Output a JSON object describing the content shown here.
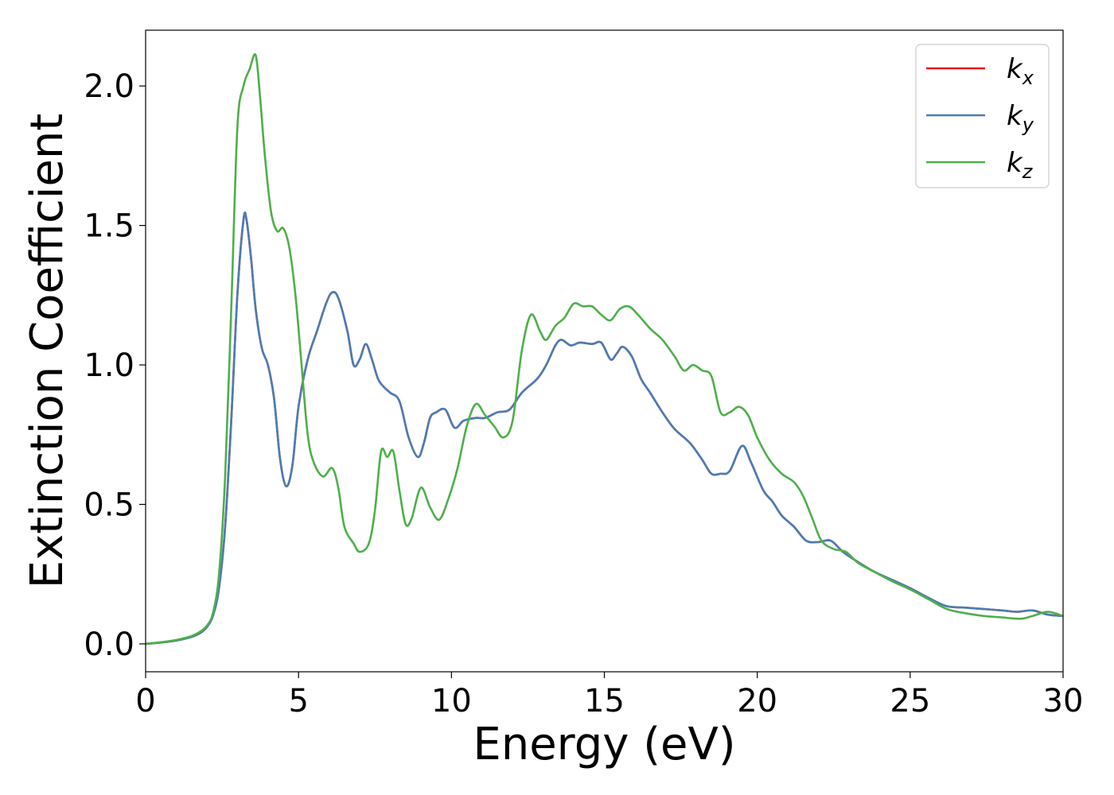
{
  "chart_data": {
    "type": "line",
    "xlabel": "Energy (eV)",
    "ylabel": "Extinction Coefficient",
    "xlim": [
      0,
      30
    ],
    "ylim": [
      -0.1,
      2.2
    ],
    "xticks": [
      0,
      5,
      10,
      15,
      20,
      25,
      30
    ],
    "yticks": [
      0.0,
      0.5,
      1.0,
      1.5,
      2.0
    ],
    "xtick_labels": [
      "0",
      "5",
      "10",
      "15",
      "20",
      "25",
      "30"
    ],
    "ytick_labels": [
      "0.0",
      "0.5",
      "1.0",
      "1.5",
      "2.0"
    ],
    "grid": false,
    "legend_position": "top-right",
    "series": [
      {
        "name": "k_x",
        "legend_base": "k",
        "legend_sub": "x",
        "color": "#e41a1c",
        "points": [
          [
            0,
            0
          ],
          [
            0.5,
            0.005
          ],
          [
            1.0,
            0.012
          ],
          [
            1.5,
            0.025
          ],
          [
            1.8,
            0.04
          ],
          [
            2.0,
            0.06
          ],
          [
            2.2,
            0.1
          ],
          [
            2.4,
            0.2
          ],
          [
            2.6,
            0.42
          ],
          [
            2.8,
            0.8
          ],
          [
            3.0,
            1.25
          ],
          [
            3.2,
            1.52
          ],
          [
            3.3,
            1.52
          ],
          [
            3.45,
            1.38
          ],
          [
            3.6,
            1.2
          ],
          [
            3.8,
            1.06
          ],
          [
            4.0,
            1.0
          ],
          [
            4.2,
            0.88
          ],
          [
            4.4,
            0.66
          ],
          [
            4.6,
            0.565
          ],
          [
            4.8,
            0.64
          ],
          [
            5.0,
            0.85
          ],
          [
            5.3,
            1.02
          ],
          [
            5.6,
            1.12
          ],
          [
            5.9,
            1.22
          ],
          [
            6.1,
            1.26
          ],
          [
            6.3,
            1.24
          ],
          [
            6.6,
            1.12
          ],
          [
            6.8,
            1.0
          ],
          [
            7.0,
            1.02
          ],
          [
            7.2,
            1.075
          ],
          [
            7.4,
            1.02
          ],
          [
            7.6,
            0.95
          ],
          [
            7.8,
            0.92
          ],
          [
            8.0,
            0.9
          ],
          [
            8.3,
            0.87
          ],
          [
            8.6,
            0.74
          ],
          [
            8.9,
            0.67
          ],
          [
            9.1,
            0.72
          ],
          [
            9.3,
            0.81
          ],
          [
            9.5,
            0.83
          ],
          [
            9.8,
            0.84
          ],
          [
            10.1,
            0.775
          ],
          [
            10.4,
            0.8
          ],
          [
            10.8,
            0.81
          ],
          [
            11.1,
            0.81
          ],
          [
            11.5,
            0.83
          ],
          [
            11.9,
            0.84
          ],
          [
            12.3,
            0.9
          ],
          [
            12.8,
            0.95
          ],
          [
            13.1,
            1.0
          ],
          [
            13.4,
            1.07
          ],
          [
            13.6,
            1.09
          ],
          [
            13.9,
            1.07
          ],
          [
            14.2,
            1.08
          ],
          [
            14.6,
            1.075
          ],
          [
            14.9,
            1.08
          ],
          [
            15.2,
            1.02
          ],
          [
            15.4,
            1.04
          ],
          [
            15.6,
            1.065
          ],
          [
            15.9,
            1.03
          ],
          [
            16.2,
            0.95
          ],
          [
            16.5,
            0.9
          ],
          [
            16.9,
            0.83
          ],
          [
            17.3,
            0.77
          ],
          [
            17.8,
            0.72
          ],
          [
            18.2,
            0.66
          ],
          [
            18.5,
            0.61
          ],
          [
            18.8,
            0.61
          ],
          [
            19.1,
            0.62
          ],
          [
            19.5,
            0.71
          ],
          [
            19.8,
            0.65
          ],
          [
            20.2,
            0.55
          ],
          [
            20.5,
            0.51
          ],
          [
            20.8,
            0.46
          ],
          [
            21.2,
            0.42
          ],
          [
            21.6,
            0.37
          ],
          [
            22.0,
            0.365
          ],
          [
            22.4,
            0.37
          ],
          [
            22.8,
            0.33
          ],
          [
            23.2,
            0.3
          ],
          [
            23.8,
            0.26
          ],
          [
            24.4,
            0.23
          ],
          [
            25.0,
            0.2
          ],
          [
            25.6,
            0.165
          ],
          [
            26.2,
            0.135
          ],
          [
            26.8,
            0.13
          ],
          [
            27.4,
            0.125
          ],
          [
            28.0,
            0.12
          ],
          [
            28.5,
            0.115
          ],
          [
            29.0,
            0.12
          ],
          [
            29.5,
            0.105
          ],
          [
            30.0,
            0.1
          ]
        ]
      },
      {
        "name": "k_y",
        "legend_base": "k",
        "legend_sub": "y",
        "color": "#4a7db5",
        "points": [
          [
            0,
            0
          ],
          [
            0.5,
            0.005
          ],
          [
            1.0,
            0.012
          ],
          [
            1.5,
            0.025
          ],
          [
            1.8,
            0.04
          ],
          [
            2.0,
            0.06
          ],
          [
            2.2,
            0.1
          ],
          [
            2.4,
            0.2
          ],
          [
            2.6,
            0.42
          ],
          [
            2.8,
            0.8
          ],
          [
            3.0,
            1.25
          ],
          [
            3.2,
            1.52
          ],
          [
            3.3,
            1.52
          ],
          [
            3.45,
            1.38
          ],
          [
            3.6,
            1.2
          ],
          [
            3.8,
            1.06
          ],
          [
            4.0,
            1.0
          ],
          [
            4.2,
            0.88
          ],
          [
            4.4,
            0.66
          ],
          [
            4.6,
            0.565
          ],
          [
            4.8,
            0.64
          ],
          [
            5.0,
            0.85
          ],
          [
            5.3,
            1.02
          ],
          [
            5.6,
            1.12
          ],
          [
            5.9,
            1.22
          ],
          [
            6.1,
            1.26
          ],
          [
            6.3,
            1.24
          ],
          [
            6.6,
            1.12
          ],
          [
            6.8,
            1.0
          ],
          [
            7.0,
            1.02
          ],
          [
            7.2,
            1.075
          ],
          [
            7.4,
            1.02
          ],
          [
            7.6,
            0.95
          ],
          [
            7.8,
            0.92
          ],
          [
            8.0,
            0.9
          ],
          [
            8.3,
            0.87
          ],
          [
            8.6,
            0.74
          ],
          [
            8.9,
            0.67
          ],
          [
            9.1,
            0.72
          ],
          [
            9.3,
            0.81
          ],
          [
            9.5,
            0.83
          ],
          [
            9.8,
            0.84
          ],
          [
            10.1,
            0.775
          ],
          [
            10.4,
            0.8
          ],
          [
            10.8,
            0.81
          ],
          [
            11.1,
            0.81
          ],
          [
            11.5,
            0.83
          ],
          [
            11.9,
            0.84
          ],
          [
            12.3,
            0.9
          ],
          [
            12.8,
            0.95
          ],
          [
            13.1,
            1.0
          ],
          [
            13.4,
            1.07
          ],
          [
            13.6,
            1.09
          ],
          [
            13.9,
            1.07
          ],
          [
            14.2,
            1.08
          ],
          [
            14.6,
            1.075
          ],
          [
            14.9,
            1.08
          ],
          [
            15.2,
            1.02
          ],
          [
            15.4,
            1.04
          ],
          [
            15.6,
            1.065
          ],
          [
            15.9,
            1.03
          ],
          [
            16.2,
            0.95
          ],
          [
            16.5,
            0.9
          ],
          [
            16.9,
            0.83
          ],
          [
            17.3,
            0.77
          ],
          [
            17.8,
            0.72
          ],
          [
            18.2,
            0.66
          ],
          [
            18.5,
            0.61
          ],
          [
            18.8,
            0.61
          ],
          [
            19.1,
            0.62
          ],
          [
            19.5,
            0.71
          ],
          [
            19.8,
            0.65
          ],
          [
            20.2,
            0.55
          ],
          [
            20.5,
            0.51
          ],
          [
            20.8,
            0.46
          ],
          [
            21.2,
            0.42
          ],
          [
            21.6,
            0.37
          ],
          [
            22.0,
            0.365
          ],
          [
            22.4,
            0.37
          ],
          [
            22.8,
            0.33
          ],
          [
            23.2,
            0.3
          ],
          [
            23.8,
            0.26
          ],
          [
            24.4,
            0.23
          ],
          [
            25.0,
            0.2
          ],
          [
            25.6,
            0.165
          ],
          [
            26.2,
            0.135
          ],
          [
            26.8,
            0.13
          ],
          [
            27.4,
            0.125
          ],
          [
            28.0,
            0.12
          ],
          [
            28.5,
            0.115
          ],
          [
            29.0,
            0.12
          ],
          [
            29.5,
            0.105
          ],
          [
            30.0,
            0.1
          ]
        ]
      },
      {
        "name": "k_z",
        "legend_base": "k",
        "legend_sub": "z",
        "color": "#4daf4a",
        "points": [
          [
            0,
            0
          ],
          [
            0.5,
            0.006
          ],
          [
            1.0,
            0.014
          ],
          [
            1.5,
            0.028
          ],
          [
            1.8,
            0.045
          ],
          [
            2.0,
            0.065
          ],
          [
            2.2,
            0.11
          ],
          [
            2.4,
            0.25
          ],
          [
            2.6,
            0.6
          ],
          [
            2.8,
            1.2
          ],
          [
            3.0,
            1.85
          ],
          [
            3.2,
            2.0
          ],
          [
            3.4,
            2.06
          ],
          [
            3.6,
            2.11
          ],
          [
            3.75,
            1.95
          ],
          [
            3.9,
            1.75
          ],
          [
            4.1,
            1.55
          ],
          [
            4.3,
            1.48
          ],
          [
            4.5,
            1.49
          ],
          [
            4.7,
            1.42
          ],
          [
            4.9,
            1.25
          ],
          [
            5.1,
            1.0
          ],
          [
            5.3,
            0.75
          ],
          [
            5.5,
            0.65
          ],
          [
            5.8,
            0.6
          ],
          [
            6.1,
            0.63
          ],
          [
            6.3,
            0.56
          ],
          [
            6.5,
            0.42
          ],
          [
            6.8,
            0.36
          ],
          [
            7.0,
            0.33
          ],
          [
            7.3,
            0.36
          ],
          [
            7.5,
            0.48
          ],
          [
            7.7,
            0.69
          ],
          [
            7.9,
            0.67
          ],
          [
            8.1,
            0.69
          ],
          [
            8.3,
            0.55
          ],
          [
            8.5,
            0.43
          ],
          [
            8.7,
            0.45
          ],
          [
            9.0,
            0.56
          ],
          [
            9.3,
            0.49
          ],
          [
            9.6,
            0.445
          ],
          [
            9.9,
            0.52
          ],
          [
            10.2,
            0.63
          ],
          [
            10.5,
            0.78
          ],
          [
            10.8,
            0.86
          ],
          [
            11.1,
            0.82
          ],
          [
            11.4,
            0.78
          ],
          [
            11.7,
            0.74
          ],
          [
            12.0,
            0.8
          ],
          [
            12.3,
            1.05
          ],
          [
            12.6,
            1.18
          ],
          [
            12.9,
            1.12
          ],
          [
            13.1,
            1.09
          ],
          [
            13.4,
            1.14
          ],
          [
            13.7,
            1.17
          ],
          [
            14.0,
            1.22
          ],
          [
            14.3,
            1.21
          ],
          [
            14.6,
            1.21
          ],
          [
            14.9,
            1.18
          ],
          [
            15.2,
            1.16
          ],
          [
            15.5,
            1.2
          ],
          [
            15.8,
            1.21
          ],
          [
            16.1,
            1.18
          ],
          [
            16.5,
            1.13
          ],
          [
            16.9,
            1.09
          ],
          [
            17.3,
            1.03
          ],
          [
            17.6,
            0.98
          ],
          [
            17.9,
            1.0
          ],
          [
            18.2,
            0.98
          ],
          [
            18.5,
            0.96
          ],
          [
            18.8,
            0.83
          ],
          [
            19.1,
            0.83
          ],
          [
            19.4,
            0.85
          ],
          [
            19.7,
            0.82
          ],
          [
            20.0,
            0.74
          ],
          [
            20.4,
            0.66
          ],
          [
            20.8,
            0.61
          ],
          [
            21.2,
            0.58
          ],
          [
            21.5,
            0.53
          ],
          [
            21.8,
            0.45
          ],
          [
            22.1,
            0.37
          ],
          [
            22.5,
            0.34
          ],
          [
            22.9,
            0.33
          ],
          [
            23.3,
            0.29
          ],
          [
            23.8,
            0.26
          ],
          [
            24.4,
            0.225
          ],
          [
            25.0,
            0.195
          ],
          [
            25.6,
            0.16
          ],
          [
            26.2,
            0.125
          ],
          [
            26.8,
            0.11
          ],
          [
            27.4,
            0.1
          ],
          [
            28.0,
            0.095
          ],
          [
            28.6,
            0.09
          ],
          [
            29.0,
            0.1
          ],
          [
            29.5,
            0.115
          ],
          [
            30.0,
            0.1
          ]
        ]
      }
    ]
  }
}
